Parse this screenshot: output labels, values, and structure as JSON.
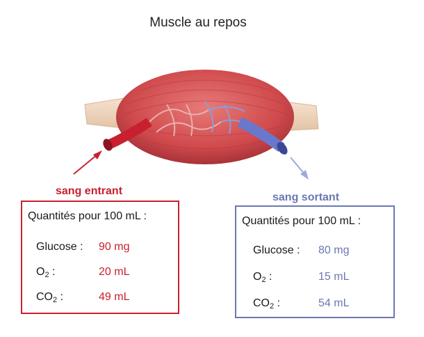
{
  "title": "Muscle au repos",
  "colors": {
    "in": "#c8202e",
    "out": "#6a78b3",
    "muscle": "#d9534f"
  },
  "incoming": {
    "caption": "sang entrant",
    "header": "Quantités pour 100 mL :",
    "glucose_label": "Glucose :",
    "glucose_value": "90 mg",
    "o2_label": "O",
    "o2_sub": "2",
    "o2_colon": " :",
    "o2_value": "20 mL",
    "co2_label": "CO",
    "co2_sub": "2",
    "co2_colon": " :",
    "co2_value": "49 mL"
  },
  "outgoing": {
    "caption": "sang sortant",
    "header": "Quantités pour 100 mL :",
    "glucose_label": "Glucose :",
    "glucose_value": "80 mg",
    "o2_label": "O",
    "o2_sub": "2",
    "o2_colon": " :",
    "o2_value": "15 mL",
    "co2_label": "CO",
    "co2_sub": "2",
    "co2_colon": " :",
    "co2_value": "54 mL"
  }
}
